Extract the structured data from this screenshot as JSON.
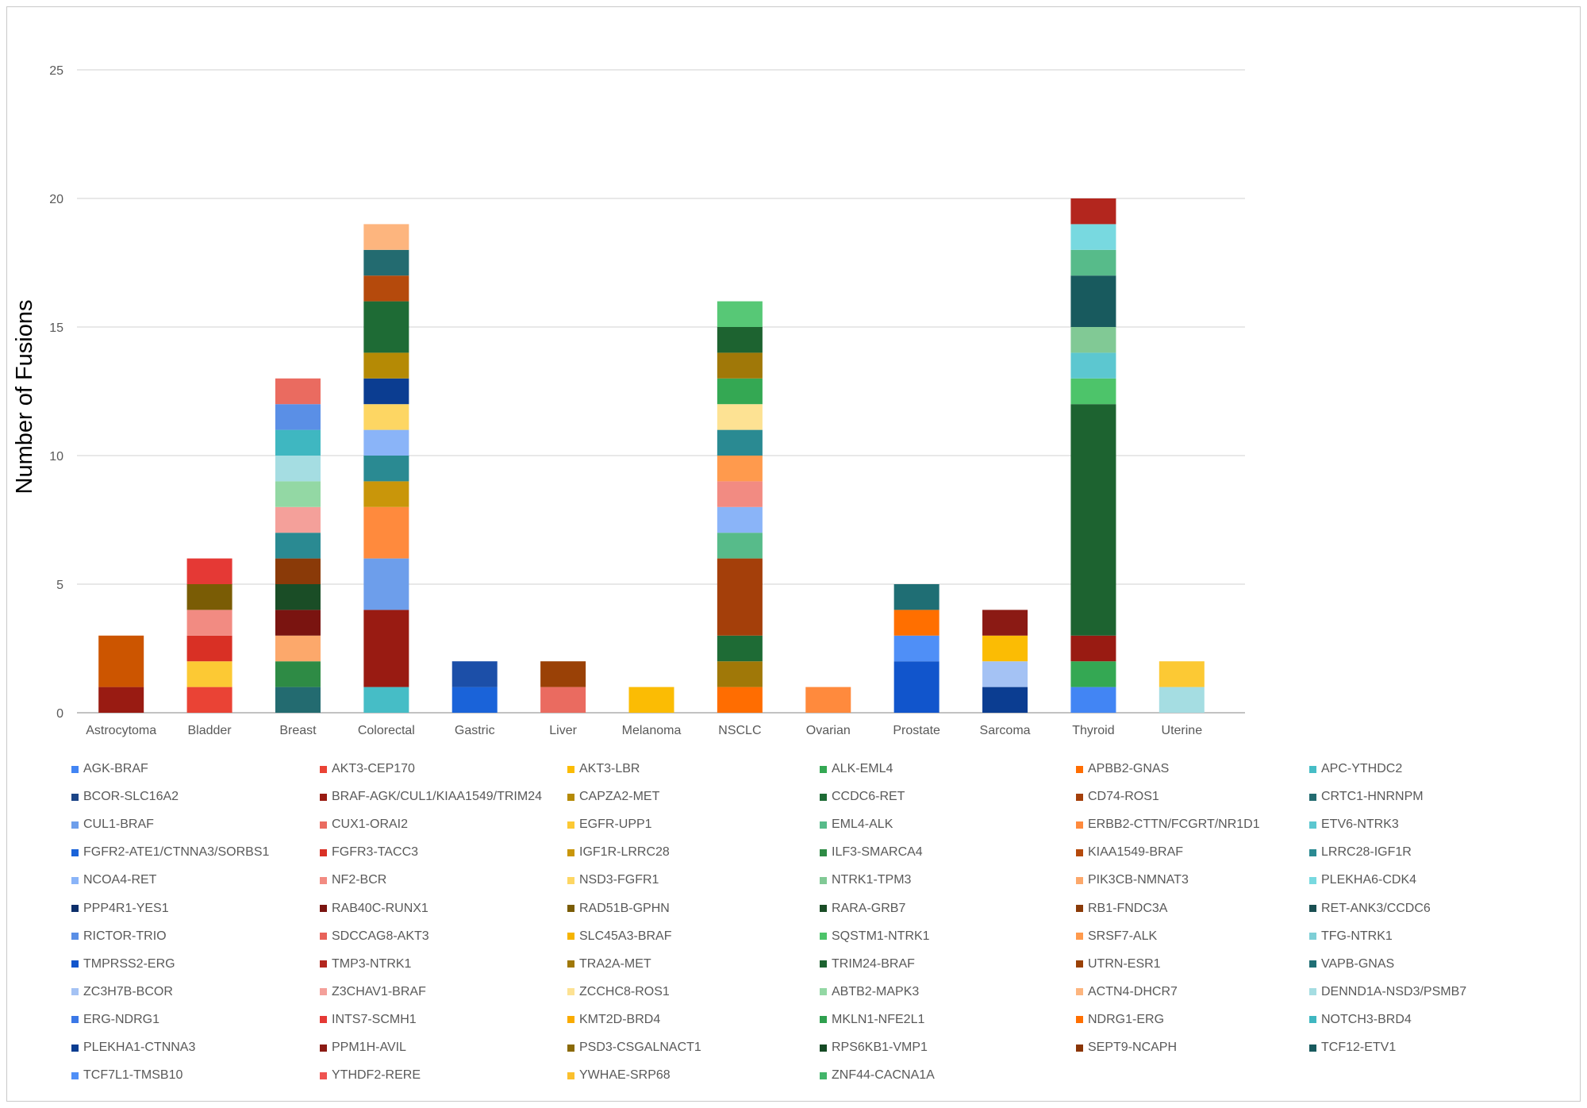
{
  "chart_data": {
    "type": "bar",
    "stacked": true,
    "title": "",
    "xlabel": "",
    "ylabel": "Number of Fusions",
    "ylim": [
      0,
      25
    ],
    "yticks": [
      0,
      5,
      10,
      15,
      20,
      25
    ],
    "grid": true,
    "legend_position": "bottom",
    "categories": [
      "Astrocytoma",
      "Bladder",
      "Breast",
      "Colorectal",
      "Gastric",
      "Liver",
      "Melanoma",
      "NSCLC",
      "Ovarian",
      "Prostate",
      "Sarcoma",
      "Thyroid",
      "Uterine"
    ],
    "series": [
      {
        "name": "AGK-BRAF",
        "color": "#4285f4"
      },
      {
        "name": "AKT3-CEP170",
        "color": "#ea4335"
      },
      {
        "name": "AKT3-LBR",
        "color": "#fbbc04"
      },
      {
        "name": "ALK-EML4",
        "color": "#34a853"
      },
      {
        "name": "APBB2-GNAS",
        "color": "#ff6d01"
      },
      {
        "name": "APC-YTHDC2",
        "color": "#46bdc6"
      },
      {
        "name": "BCOR-SLC16A2",
        "color": "#1c4587"
      },
      {
        "name": "BRAF-AGK/CUL1/KIAA1549/TRIM24",
        "color": "#991b12"
      },
      {
        "name": "CAPZA2-MET",
        "color": "#b58a05"
      },
      {
        "name": "CCDC6-RET",
        "color": "#1e6b35"
      },
      {
        "name": "CD74-ROS1",
        "color": "#a43f0a"
      },
      {
        "name": "CRTC1-HNRNPM",
        "color": "#236b70"
      },
      {
        "name": "CUL1-BRAF",
        "color": "#6d9eeb"
      },
      {
        "name": "CUX1-ORAI2",
        "color": "#ea6b60"
      },
      {
        "name": "EGFR-UPP1",
        "color": "#fcc934"
      },
      {
        "name": "EML4-ALK",
        "color": "#57bb8a"
      },
      {
        "name": "ERBB2-CTTN/FCGRT/NR1D1",
        "color": "#ff8a3d"
      },
      {
        "name": "ETV6-NTRK3",
        "color": "#5cc7d0"
      },
      {
        "name": "FGFR2-ATE1/CTNNA3/SORBS1",
        "color": "#1a63d9"
      },
      {
        "name": "FGFR3-TACC3",
        "color": "#d93025"
      },
      {
        "name": "IGF1R-LRRC28",
        "color": "#c9960a"
      },
      {
        "name": "ILF3-SMARCA4",
        "color": "#2e8b45"
      },
      {
        "name": "KIAA1549-BRAF",
        "color": "#b54a0c"
      },
      {
        "name": "LRRC28-IGF1R",
        "color": "#2a8a92"
      },
      {
        "name": "NCOA4-RET",
        "color": "#8ab4f8"
      },
      {
        "name": "NF2-BCR",
        "color": "#f28b82"
      },
      {
        "name": "NSD3-FGFR1",
        "color": "#fdd663"
      },
      {
        "name": "NTRK1-TPM3",
        "color": "#81c995"
      },
      {
        "name": "PIK3CB-NMNAT3",
        "color": "#fca86b"
      },
      {
        "name": "PLEKHA6-CDK4",
        "color": "#78d9e0"
      },
      {
        "name": "PPP4R1-YES1",
        "color": "#0d2f6b"
      },
      {
        "name": "RAB40C-RUNX1",
        "color": "#7a1410"
      },
      {
        "name": "RAD51B-GPHN",
        "color": "#7a5c05"
      },
      {
        "name": "RARA-GRB7",
        "color": "#1a4d26"
      },
      {
        "name": "RB1-FNDC3A",
        "color": "#8a3a08"
      },
      {
        "name": "RET-ANK3/CCDC6",
        "color": "#1a4f52"
      },
      {
        "name": "RICTOR-TRIO",
        "color": "#5a8fe6"
      },
      {
        "name": "SDCCAG8-AKT3",
        "color": "#e8625a"
      },
      {
        "name": "SLC45A3-BRAF",
        "color": "#f5b400"
      },
      {
        "name": "SQSTM1-NTRK1",
        "color": "#4dc46a"
      },
      {
        "name": "SRSF7-ALK",
        "color": "#ff9a4d"
      },
      {
        "name": "TFG-NTRK1",
        "color": "#7ecfd6"
      },
      {
        "name": "TMPRSS2-ERG",
        "color": "#1155cc"
      },
      {
        "name": "TMP3-NTRK1",
        "color": "#b3261e"
      },
      {
        "name": "TRA2A-MET",
        "color": "#a07808"
      },
      {
        "name": "TRIM24-BRAF",
        "color": "#1d6330"
      },
      {
        "name": "UTRN-ESR1",
        "color": "#9a4106"
      },
      {
        "name": "VAPB-GNAS",
        "color": "#1f6e74"
      },
      {
        "name": "ZC3H7B-BCOR",
        "color": "#a4c2f4"
      },
      {
        "name": "Z3CHAV1-BRAF",
        "color": "#f4a09a"
      },
      {
        "name": "ZCCHC8-ROS1",
        "color": "#fde293"
      },
      {
        "name": "ABTB2-MAPK3",
        "color": "#93d8a4"
      },
      {
        "name": "ACTN4-DHCR7",
        "color": "#fdb57e"
      },
      {
        "name": "DENND1A-NSD3/PSMB7",
        "color": "#a5dde2"
      },
      {
        "name": "ERG-NDRG1",
        "color": "#3b78e7"
      },
      {
        "name": "INTS7-SCMH1",
        "color": "#e53935"
      },
      {
        "name": "KMT2D-BRD4",
        "color": "#f9ab00"
      },
      {
        "name": "MKLN1-NFE2L1",
        "color": "#2fa04f"
      },
      {
        "name": "NDRG1-ERG",
        "color": "#ff6f00"
      },
      {
        "name": "NOTCH3-BRD4",
        "color": "#3fb7c1"
      },
      {
        "name": "PLEKHA1-CTNNA3",
        "color": "#0b3d91"
      },
      {
        "name": "PPM1H-AVIL",
        "color": "#8b1a14"
      },
      {
        "name": "PSD3-CSGALNACT1",
        "color": "#8a6a06"
      },
      {
        "name": "RPS6KB1-VMP1",
        "color": "#154a24"
      },
      {
        "name": "SEPT9-NCAPH",
        "color": "#8a3505"
      },
      {
        "name": "TCF12-ETV1",
        "color": "#185a5e"
      },
      {
        "name": "TCF7L1-TMSB10",
        "color": "#4f8ff7"
      },
      {
        "name": "YTHDF2-RERE",
        "color": "#ef5350"
      },
      {
        "name": "YWHAE-SRP68",
        "color": "#fbc02d"
      },
      {
        "name": "ZNF44-CACNA1A",
        "color": "#43b56a"
      }
    ],
    "stacks": [
      {
        "category": "Astrocytoma",
        "segments": [
          {
            "value": 1,
            "color": "#991b12"
          },
          {
            "value": 2,
            "color": "#cc5500"
          }
        ]
      },
      {
        "category": "Bladder",
        "segments": [
          {
            "value": 1,
            "color": "#ea4335"
          },
          {
            "value": 1,
            "color": "#fcc934"
          },
          {
            "value": 1,
            "color": "#d93025"
          },
          {
            "value": 1,
            "color": "#f28b82"
          },
          {
            "value": 1,
            "color": "#7a5c05"
          },
          {
            "value": 1,
            "color": "#e53935"
          }
        ]
      },
      {
        "category": "Breast",
        "segments": [
          {
            "value": 1,
            "color": "#236b70"
          },
          {
            "value": 1,
            "color": "#2e8b45"
          },
          {
            "value": 1,
            "color": "#fca86b"
          },
          {
            "value": 1,
            "color": "#7a1410"
          },
          {
            "value": 1,
            "color": "#1a4d26"
          },
          {
            "value": 1,
            "color": "#8a3a08"
          },
          {
            "value": 1,
            "color": "#2a8a92"
          },
          {
            "value": 1,
            "color": "#f4a09a"
          },
          {
            "value": 1,
            "color": "#93d8a4"
          },
          {
            "value": 1,
            "color": "#a5dde2"
          },
          {
            "value": 1,
            "color": "#3fb7c1"
          },
          {
            "value": 1,
            "color": "#5a8fe6"
          },
          {
            "value": 1,
            "color": "#ea6b60"
          }
        ]
      },
      {
        "category": "Colorectal",
        "segments": [
          {
            "value": 1,
            "color": "#46bdc6"
          },
          {
            "value": 3,
            "color": "#991b12"
          },
          {
            "value": 2,
            "color": "#6d9eeb"
          },
          {
            "value": 2,
            "color": "#ff8a3d"
          },
          {
            "value": 1,
            "color": "#c9960a"
          },
          {
            "value": 1,
            "color": "#2a8a92"
          },
          {
            "value": 1,
            "color": "#8ab4f8"
          },
          {
            "value": 1,
            "color": "#fdd663"
          },
          {
            "value": 1,
            "color": "#0b3d91"
          },
          {
            "value": 1,
            "color": "#b58a05"
          },
          {
            "value": 2,
            "color": "#1e6b35"
          },
          {
            "value": 1,
            "color": "#b54a0c"
          },
          {
            "value": 1,
            "color": "#236b70"
          },
          {
            "value": 1,
            "color": "#fdb57e"
          }
        ]
      },
      {
        "category": "Gastric",
        "segments": [
          {
            "value": 1,
            "color": "#1a63d9"
          },
          {
            "value": 1,
            "color": "#1c4fa8"
          }
        ]
      },
      {
        "category": "Liver",
        "segments": [
          {
            "value": 1,
            "color": "#ea6b60"
          },
          {
            "value": 1,
            "color": "#9a4106"
          }
        ]
      },
      {
        "category": "Melanoma",
        "segments": [
          {
            "value": 1,
            "color": "#fbbc04"
          }
        ]
      },
      {
        "category": "NSCLC",
        "segments": [
          {
            "value": 1,
            "color": "#ff6d01"
          },
          {
            "value": 1,
            "color": "#a07808"
          },
          {
            "value": 1,
            "color": "#1e6b35"
          },
          {
            "value": 3,
            "color": "#a43f0a"
          },
          {
            "value": 1,
            "color": "#57bb8a"
          },
          {
            "value": 1,
            "color": "#8ab4f8"
          },
          {
            "value": 1,
            "color": "#f28b82"
          },
          {
            "value": 1,
            "color": "#ff9a4d"
          },
          {
            "value": 1,
            "color": "#2a8a92"
          },
          {
            "value": 1,
            "color": "#fde293"
          },
          {
            "value": 1,
            "color": "#34a853"
          },
          {
            "value": 1,
            "color": "#a07808"
          },
          {
            "value": 1,
            "color": "#1d6330"
          },
          {
            "value": 1,
            "color": "#57c876"
          }
        ]
      },
      {
        "category": "Ovarian",
        "segments": [
          {
            "value": 1,
            "color": "#ff8a3d"
          }
        ]
      },
      {
        "category": "Prostate",
        "segments": [
          {
            "value": 2,
            "color": "#1155cc"
          },
          {
            "value": 1,
            "color": "#4f8ff7"
          },
          {
            "value": 1,
            "color": "#ff6f00"
          },
          {
            "value": 1,
            "color": "#1f6e74"
          }
        ]
      },
      {
        "category": "Sarcoma",
        "segments": [
          {
            "value": 1,
            "color": "#0b3d91"
          },
          {
            "value": 1,
            "color": "#a4c2f4"
          },
          {
            "value": 1,
            "color": "#fbbc04"
          },
          {
            "value": 1,
            "color": "#8b1a14"
          }
        ]
      },
      {
        "category": "Thyroid",
        "segments": [
          {
            "value": 1,
            "color": "#4285f4"
          },
          {
            "value": 1,
            "color": "#34a853"
          },
          {
            "value": 1,
            "color": "#991b12"
          },
          {
            "value": 9,
            "color": "#1d6330"
          },
          {
            "value": 1,
            "color": "#4dc46a"
          },
          {
            "value": 1,
            "color": "#5cc7d0"
          },
          {
            "value": 1,
            "color": "#81c995"
          },
          {
            "value": 2,
            "color": "#185a5e"
          },
          {
            "value": 1,
            "color": "#57bb8a"
          },
          {
            "value": 1,
            "color": "#78d9e0"
          },
          {
            "value": 1,
            "color": "#b3261e"
          }
        ]
      },
      {
        "category": "Uterine",
        "segments": [
          {
            "value": 1,
            "color": "#a5dde2"
          },
          {
            "value": 1,
            "color": "#fcc934"
          }
        ]
      }
    ]
  }
}
